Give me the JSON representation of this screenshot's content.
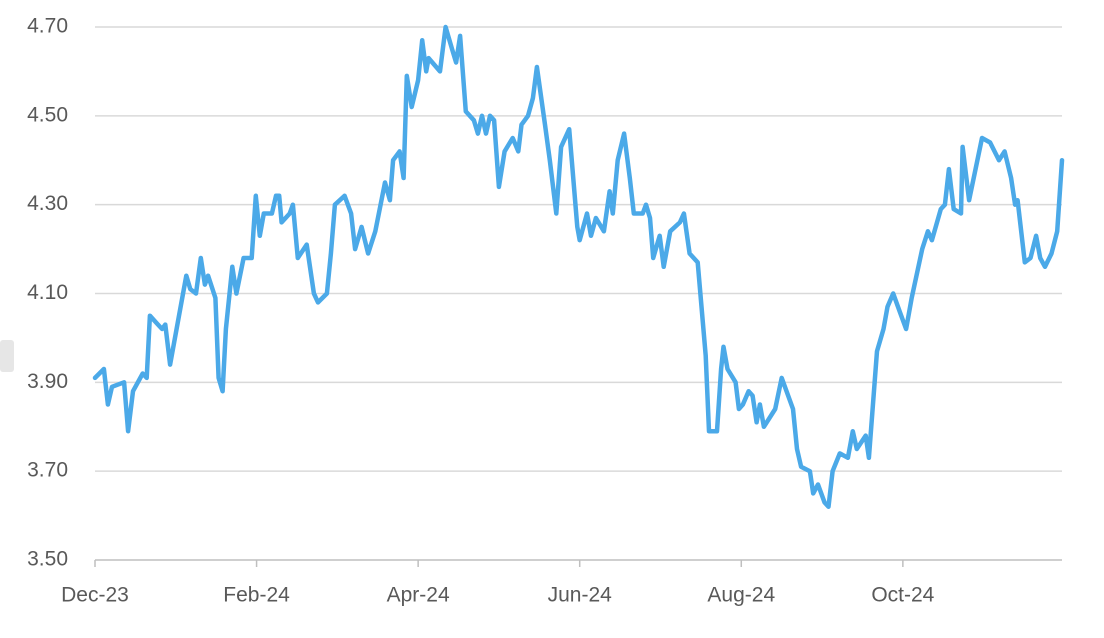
{
  "chart_data": {
    "type": "line",
    "x": [
      0,
      0.11,
      0.16,
      0.21,
      0.36,
      0.41,
      0.47,
      0.59,
      0.64,
      0.68,
      0.78,
      0.83,
      0.87,
      0.93,
      1.05,
      1.13,
      1.18,
      1.25,
      1.31,
      1.36,
      1.4,
      1.49,
      1.53,
      1.58,
      1.62,
      1.7,
      1.75,
      1.84,
      1.94,
      1.99,
      2.04,
      2.09,
      2.19,
      2.24,
      2.28,
      2.31,
      2.41,
      2.45,
      2.51,
      2.62,
      2.71,
      2.76,
      2.87,
      2.92,
      2.97,
      3.09,
      3.17,
      3.22,
      3.3,
      3.38,
      3.47,
      3.59,
      3.65,
      3.69,
      3.77,
      3.82,
      3.86,
      3.92,
      4.0,
      4.05,
      4.1,
      4.13,
      4.27,
      4.34,
      4.42,
      4.47,
      4.52,
      4.59,
      4.69,
      4.74,
      4.79,
      4.84,
      4.89,
      4.94,
      5.0,
      5.07,
      5.17,
      5.24,
      5.28,
      5.36,
      5.42,
      5.47,
      5.57,
      5.63,
      5.71,
      5.77,
      5.87,
      5.97,
      6.0,
      6.09,
      6.14,
      6.2,
      6.3,
      6.37,
      6.41,
      6.47,
      6.55,
      6.62,
      6.67,
      6.78,
      6.82,
      6.87,
      6.91,
      6.99,
      7.04,
      7.12,
      7.24,
      7.29,
      7.36,
      7.46,
      7.56,
      7.6,
      7.7,
      7.75,
      7.78,
      7.83,
      7.93,
      7.97,
      8.02,
      8.09,
      8.14,
      8.19,
      8.23,
      8.28,
      8.42,
      8.5,
      8.64,
      8.69,
      8.74,
      8.85,
      8.89,
      8.95,
      9.03,
      9.08,
      9.13,
      9.22,
      9.32,
      9.38,
      9.43,
      9.54,
      9.58,
      9.68,
      9.76,
      9.81,
      9.88,
      9.96,
      10.04,
      10.11,
      10.24,
      10.31,
      10.36,
      10.47,
      10.52,
      10.57,
      10.63,
      10.72,
      10.74,
      10.82,
      10.98,
      11.08,
      11.19,
      11.26,
      11.34,
      11.39,
      11.42,
      11.51,
      11.58,
      11.65,
      11.7,
      11.76,
      11.84,
      11.91,
      11.97
    ],
    "values": [
      3.91,
      3.93,
      3.85,
      3.89,
      3.9,
      3.79,
      3.88,
      3.92,
      3.91,
      4.05,
      4.03,
      4.02,
      4.03,
      3.94,
      4.06,
      4.14,
      4.11,
      4.1,
      4.18,
      4.12,
      4.14,
      4.09,
      3.91,
      3.88,
      4.02,
      4.16,
      4.1,
      4.18,
      4.18,
      4.32,
      4.23,
      4.28,
      4.28,
      4.32,
      4.32,
      4.26,
      4.28,
      4.3,
      4.18,
      4.21,
      4.1,
      4.08,
      4.1,
      4.19,
      4.3,
      4.32,
      4.28,
      4.2,
      4.25,
      4.19,
      4.24,
      4.35,
      4.31,
      4.4,
      4.42,
      4.36,
      4.59,
      4.52,
      4.58,
      4.67,
      4.6,
      4.63,
      4.6,
      4.7,
      4.65,
      4.62,
      4.68,
      4.51,
      4.49,
      4.46,
      4.5,
      4.46,
      4.5,
      4.49,
      4.34,
      4.42,
      4.45,
      4.42,
      4.48,
      4.5,
      4.54,
      4.61,
      4.48,
      4.4,
      4.28,
      4.43,
      4.47,
      4.25,
      4.22,
      4.28,
      4.23,
      4.27,
      4.24,
      4.33,
      4.28,
      4.4,
      4.46,
      4.36,
      4.28,
      4.28,
      4.3,
      4.27,
      4.18,
      4.23,
      4.16,
      4.24,
      4.26,
      4.28,
      4.19,
      4.17,
      3.96,
      3.79,
      3.79,
      3.93,
      3.98,
      3.93,
      3.9,
      3.84,
      3.85,
      3.88,
      3.87,
      3.81,
      3.85,
      3.8,
      3.84,
      3.91,
      3.84,
      3.75,
      3.71,
      3.7,
      3.65,
      3.67,
      3.63,
      3.62,
      3.7,
      3.74,
      3.73,
      3.79,
      3.75,
      3.78,
      3.73,
      3.97,
      4.02,
      4.07,
      4.1,
      4.06,
      4.02,
      4.09,
      4.2,
      4.24,
      4.22,
      4.29,
      4.3,
      4.38,
      4.29,
      4.28,
      4.43,
      4.31,
      4.45,
      4.44,
      4.4,
      4.42,
      4.36,
      4.3,
      4.31,
      4.17,
      4.18,
      4.23,
      4.18,
      4.16,
      4.19,
      4.24,
      4.4
    ],
    "color": "#4ba9e8",
    "xlim": [
      0,
      11.97
    ],
    "xticks": [
      {
        "value": 0,
        "label": "Dec-23"
      },
      {
        "value": 2,
        "label": "Feb-24"
      },
      {
        "value": 4,
        "label": "Apr-24"
      },
      {
        "value": 6,
        "label": "Jun-24"
      },
      {
        "value": 8,
        "label": "Aug-24"
      },
      {
        "value": 10,
        "label": "Oct-24"
      }
    ],
    "ylim": [
      3.5,
      4.7
    ],
    "yticks": [
      {
        "value": 3.5,
        "label": "3.50"
      },
      {
        "value": 3.7,
        "label": "3.70"
      },
      {
        "value": 3.9,
        "label": "3.90"
      },
      {
        "value": 4.1,
        "label": "4.10"
      },
      {
        "value": 4.3,
        "label": "4.30"
      },
      {
        "value": 4.5,
        "label": "4.50"
      },
      {
        "value": 4.7,
        "label": "4.70"
      }
    ],
    "grid": true
  }
}
